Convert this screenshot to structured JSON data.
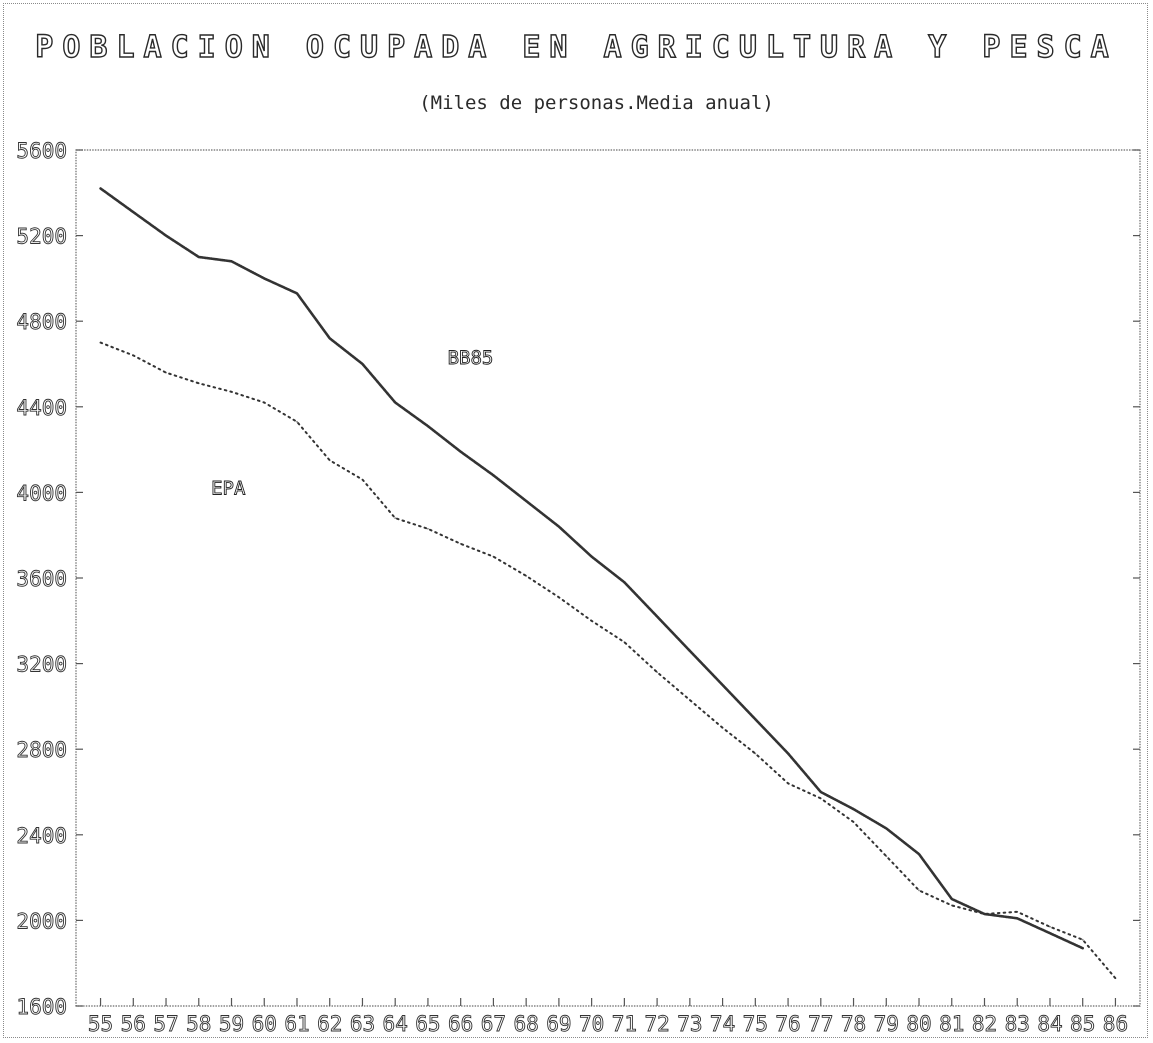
{
  "chart_data": {
    "type": "line",
    "title": "POBLACION OCUPADA EN AGRICULTURA Y PESCA",
    "subtitle": "(Miles de personas.Media anual)",
    "xlabel": "",
    "ylabel": "",
    "grid": false,
    "legend": "inline",
    "x_ticks": [
      "55",
      "56",
      "57",
      "58",
      "59",
      "60",
      "61",
      "62",
      "63",
      "64",
      "65",
      "66",
      "67",
      "68",
      "69",
      "70",
      "71",
      "72",
      "73",
      "74",
      "75",
      "76",
      "77",
      "78",
      "79",
      "80",
      "81",
      "82",
      "83",
      "84",
      "85",
      "86"
    ],
    "y_ticks": [
      "5600",
      "5200",
      "4800",
      "4400",
      "4000",
      "3600",
      "3200",
      "2800",
      "2400",
      "2000",
      "1600"
    ],
    "ylim": [
      1600,
      5600
    ],
    "xlim": [
      54.25,
      86.75
    ],
    "series": [
      {
        "name": "BB85",
        "color": "#333333",
        "style": "solid-dense",
        "x": [
          55,
          56,
          57,
          58,
          59,
          60,
          61,
          62,
          63,
          64,
          65,
          66,
          67,
          68,
          69,
          70,
          71,
          72,
          73,
          74,
          75,
          76,
          77,
          78,
          79,
          80,
          81,
          82,
          83,
          84,
          85
        ],
        "y": [
          5420,
          5310,
          5200,
          5100,
          5080,
          5000,
          4930,
          4720,
          4600,
          4420,
          4310,
          4190,
          4080,
          3960,
          3840,
          3700,
          3580,
          3420,
          3260,
          3100,
          2940,
          2780,
          2600,
          2520,
          2430,
          2310,
          2100,
          2030,
          2010,
          1940,
          1870
        ]
      },
      {
        "name": "EPA",
        "color": "#333333",
        "style": "dotted",
        "x": [
          55,
          56,
          57,
          58,
          59,
          60,
          61,
          62,
          63,
          64,
          65,
          66,
          67,
          68,
          69,
          70,
          71,
          72,
          73,
          74,
          75,
          76,
          77,
          78,
          79,
          80,
          81,
          82,
          83,
          84,
          85,
          86
        ],
        "y": [
          4700,
          4640,
          4560,
          4510,
          4470,
          4420,
          4330,
          4150,
          4060,
          3880,
          3830,
          3760,
          3700,
          3610,
          3510,
          3400,
          3300,
          3160,
          3030,
          2900,
          2780,
          2640,
          2570,
          2460,
          2300,
          2140,
          2070,
          2030,
          2040,
          1970,
          1910,
          1730
        ]
      }
    ],
    "annotations": [
      {
        "text": "BB85",
        "series": "BB85",
        "x": 66.3,
        "y": 4600
      },
      {
        "text": "EPA",
        "series": "EPA",
        "x": 58.9,
        "y": 3990
      }
    ]
  }
}
